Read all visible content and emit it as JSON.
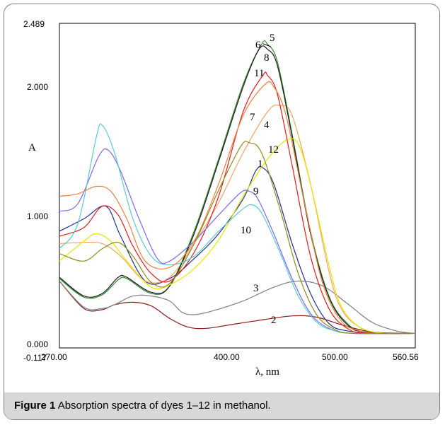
{
  "caption": {
    "label": "Figure 1",
    "text": " Absorption spectra of dyes 1–12 in methanol."
  },
  "chart_data": {
    "type": "line",
    "title": "",
    "xlabel": "λ, nm",
    "ylabel": "A",
    "xlim": [
      270.0,
      560.56
    ],
    "ylim": [
      -0.117,
      2.489
    ],
    "x_ticks": [
      "270.00",
      "400.00",
      "500.00",
      "560.56"
    ],
    "y_ticks": [
      "-0.117",
      "0.000",
      "1.000",
      "2.000",
      "2.489"
    ],
    "grid": false,
    "series": [
      {
        "name": "1",
        "color": "#1f2f8f",
        "points": [
          [
            270,
            0.82
          ],
          [
            290,
            0.92
          ],
          [
            308,
            1.02
          ],
          [
            320,
            0.78
          ],
          [
            340,
            0.42
          ],
          [
            360,
            0.44
          ],
          [
            380,
            0.6
          ],
          [
            400,
            0.8
          ],
          [
            420,
            1.08
          ],
          [
            430,
            1.3
          ],
          [
            436,
            1.33
          ],
          [
            445,
            1.2
          ],
          [
            460,
            0.72
          ],
          [
            475,
            0.32
          ],
          [
            490,
            0.08
          ],
          [
            505,
            0.02
          ],
          [
            530,
            0.0
          ],
          [
            560,
            0.0
          ]
        ]
      },
      {
        "name": "2",
        "color": "#8b1a1a",
        "points": [
          [
            270,
            0.42
          ],
          [
            290,
            0.2
          ],
          [
            305,
            0.19
          ],
          [
            315,
            0.23
          ],
          [
            330,
            0.25
          ],
          [
            345,
            0.22
          ],
          [
            360,
            0.12
          ],
          [
            375,
            0.05
          ],
          [
            390,
            0.04
          ],
          [
            410,
            0.07
          ],
          [
            430,
            0.1
          ],
          [
            460,
            0.14
          ],
          [
            480,
            0.13
          ],
          [
            500,
            0.07
          ],
          [
            520,
            0.02
          ],
          [
            540,
            0.0
          ],
          [
            560,
            0.0
          ]
        ]
      },
      {
        "name": "3",
        "color": "#7f7f7f",
        "points": [
          [
            270,
            0.42
          ],
          [
            290,
            0.21
          ],
          [
            305,
            0.2
          ],
          [
            315,
            0.23
          ],
          [
            330,
            0.3
          ],
          [
            345,
            0.3
          ],
          [
            360,
            0.26
          ],
          [
            370,
            0.17
          ],
          [
            380,
            0.15
          ],
          [
            395,
            0.18
          ],
          [
            420,
            0.26
          ],
          [
            445,
            0.37
          ],
          [
            465,
            0.42
          ],
          [
            485,
            0.38
          ],
          [
            505,
            0.24
          ],
          [
            525,
            0.09
          ],
          [
            545,
            0.02
          ],
          [
            560,
            0.0
          ]
        ]
      },
      {
        "name": "4",
        "color": "#f4a460",
        "points": [
          [
            270,
            0.72
          ],
          [
            290,
            0.73
          ],
          [
            305,
            0.72
          ],
          [
            320,
            0.62
          ],
          [
            340,
            0.42
          ],
          [
            360,
            0.45
          ],
          [
            380,
            0.72
          ],
          [
            400,
            1.05
          ],
          [
            420,
            1.45
          ],
          [
            440,
            1.78
          ],
          [
            450,
            1.83
          ],
          [
            460,
            1.75
          ],
          [
            475,
            1.2
          ],
          [
            490,
            0.5
          ],
          [
            500,
            0.2
          ],
          [
            515,
            0.05
          ],
          [
            535,
            0.0
          ],
          [
            560,
            0.0
          ]
        ]
      },
      {
        "name": "5",
        "color": "#2e8b2e",
        "points": [
          [
            270,
            0.44
          ],
          [
            290,
            0.29
          ],
          [
            305,
            0.31
          ],
          [
            318,
            0.43
          ],
          [
            325,
            0.44
          ],
          [
            345,
            0.32
          ],
          [
            360,
            0.38
          ],
          [
            380,
            0.82
          ],
          [
            400,
            1.4
          ],
          [
            420,
            2.0
          ],
          [
            435,
            2.32
          ],
          [
            440,
            2.32
          ],
          [
            448,
            2.18
          ],
          [
            460,
            1.6
          ],
          [
            475,
            0.82
          ],
          [
            490,
            0.3
          ],
          [
            505,
            0.08
          ],
          [
            520,
            0.01
          ],
          [
            560,
            0.0
          ]
        ]
      },
      {
        "name": "6",
        "color": "#1c1c1c",
        "points": [
          [
            270,
            0.45
          ],
          [
            290,
            0.3
          ],
          [
            305,
            0.32
          ],
          [
            318,
            0.45
          ],
          [
            325,
            0.45
          ],
          [
            345,
            0.33
          ],
          [
            360,
            0.38
          ],
          [
            380,
            0.8
          ],
          [
            400,
            1.38
          ],
          [
            420,
            1.98
          ],
          [
            433,
            2.28
          ],
          [
            440,
            2.28
          ],
          [
            448,
            2.15
          ],
          [
            460,
            1.58
          ],
          [
            475,
            0.8
          ],
          [
            490,
            0.29
          ],
          [
            505,
            0.07
          ],
          [
            520,
            0.01
          ],
          [
            560,
            0.0
          ]
        ]
      },
      {
        "name": "7",
        "color": "#e6e600",
        "points": [
          [
            270,
            0.58
          ],
          [
            290,
            0.74
          ],
          [
            300,
            0.8
          ],
          [
            312,
            0.74
          ],
          [
            325,
            0.58
          ],
          [
            345,
            0.37
          ],
          [
            360,
            0.39
          ],
          [
            380,
            0.52
          ],
          [
            400,
            0.75
          ],
          [
            420,
            1.1
          ],
          [
            440,
            1.4
          ],
          [
            455,
            1.55
          ],
          [
            465,
            1.52
          ],
          [
            475,
            1.2
          ],
          [
            490,
            0.55
          ],
          [
            500,
            0.22
          ],
          [
            515,
            0.05
          ],
          [
            535,
            0.0
          ],
          [
            560,
            0.0
          ]
        ]
      },
      {
        "name": "8",
        "color": "#e41a1c",
        "points": [
          [
            270,
            0.78
          ],
          [
            290,
            0.85
          ],
          [
            305,
            1.02
          ],
          [
            318,
            0.95
          ],
          [
            330,
            0.7
          ],
          [
            345,
            0.48
          ],
          [
            360,
            0.42
          ],
          [
            380,
            0.65
          ],
          [
            400,
            1.1
          ],
          [
            420,
            1.78
          ],
          [
            436,
            2.07
          ],
          [
            440,
            2.07
          ],
          [
            448,
            1.92
          ],
          [
            460,
            1.35
          ],
          [
            475,
            0.62
          ],
          [
            490,
            0.2
          ],
          [
            505,
            0.04
          ],
          [
            520,
            0.0
          ],
          [
            560,
            0.0
          ]
        ]
      },
      {
        "name": "9",
        "color": "#7b68ee",
        "points": [
          [
            270,
            0.98
          ],
          [
            285,
            1.04
          ],
          [
            302,
            1.42
          ],
          [
            310,
            1.47
          ],
          [
            320,
            1.3
          ],
          [
            335,
            0.92
          ],
          [
            350,
            0.6
          ],
          [
            360,
            0.58
          ],
          [
            380,
            0.74
          ],
          [
            400,
            0.95
          ],
          [
            418,
            1.13
          ],
          [
            425,
            1.14
          ],
          [
            432,
            1.08
          ],
          [
            445,
            0.8
          ],
          [
            460,
            0.44
          ],
          [
            475,
            0.16
          ],
          [
            490,
            0.04
          ],
          [
            510,
            0.0
          ],
          [
            560,
            0.0
          ]
        ]
      },
      {
        "name": "10",
        "color": "#5cc8d6",
        "points": [
          [
            270,
            0.68
          ],
          [
            285,
            0.88
          ],
          [
            300,
            1.57
          ],
          [
            305,
            1.67
          ],
          [
            315,
            1.45
          ],
          [
            330,
            0.92
          ],
          [
            345,
            0.62
          ],
          [
            360,
            0.55
          ],
          [
            380,
            0.62
          ],
          [
            400,
            0.82
          ],
          [
            420,
            1.0
          ],
          [
            428,
            1.03
          ],
          [
            436,
            0.95
          ],
          [
            450,
            0.65
          ],
          [
            465,
            0.3
          ],
          [
            480,
            0.09
          ],
          [
            495,
            0.02
          ],
          [
            510,
            0.0
          ],
          [
            560,
            0.0
          ]
        ]
      },
      {
        "name": "11",
        "color": "#f07f3c",
        "points": [
          [
            270,
            1.1
          ],
          [
            285,
            1.12
          ],
          [
            300,
            1.18
          ],
          [
            312,
            1.14
          ],
          [
            325,
            0.92
          ],
          [
            340,
            0.58
          ],
          [
            360,
            0.53
          ],
          [
            380,
            0.74
          ],
          [
            400,
            1.2
          ],
          [
            420,
            1.75
          ],
          [
            438,
            2.0
          ],
          [
            445,
            1.98
          ],
          [
            455,
            1.75
          ],
          [
            470,
            1.05
          ],
          [
            485,
            0.4
          ],
          [
            500,
            0.1
          ],
          [
            515,
            0.02
          ],
          [
            530,
            0.0
          ],
          [
            560,
            0.0
          ]
        ]
      },
      {
        "name": "12",
        "color": "#8b8b1a",
        "points": [
          [
            270,
            0.64
          ],
          [
            290,
            0.58
          ],
          [
            305,
            0.68
          ],
          [
            318,
            0.73
          ],
          [
            330,
            0.62
          ],
          [
            345,
            0.41
          ],
          [
            360,
            0.4
          ],
          [
            380,
            0.72
          ],
          [
            400,
            1.15
          ],
          [
            418,
            1.5
          ],
          [
            425,
            1.53
          ],
          [
            435,
            1.45
          ],
          [
            450,
            1.0
          ],
          [
            465,
            0.48
          ],
          [
            480,
            0.15
          ],
          [
            495,
            0.03
          ],
          [
            510,
            0.0
          ],
          [
            560,
            0.0
          ]
        ]
      }
    ],
    "annotations": [
      "6",
      "5",
      "8",
      "11",
      "7",
      "4",
      "12",
      "1",
      "9",
      "10",
      "3",
      "2"
    ]
  }
}
